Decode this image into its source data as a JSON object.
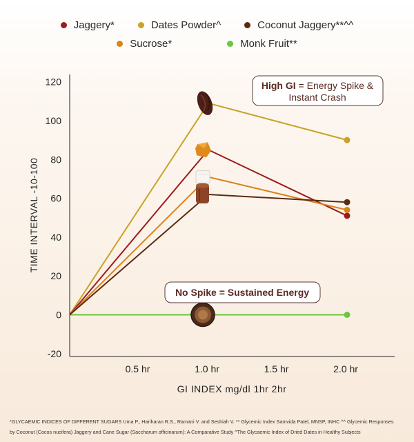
{
  "legend_rows": [
    [
      {
        "label": "Jaggery*",
        "color": "#9b1c1c"
      },
      {
        "label": "Dates Powder^",
        "color": "#c9a227"
      },
      {
        "label": "Coconut Jaggery**^^",
        "color": "#5a2a12"
      }
    ],
    [
      {
        "label": "Sucrose*",
        "color": "#d9831c"
      },
      {
        "label": "Monk Fruit**",
        "color": "#6cc63a"
      }
    ]
  ],
  "callouts": {
    "high_gi": {
      "bold": "High GI",
      "line1_rest": " = Energy Spike &",
      "line2": "Instant Crash"
    },
    "no_spike": {
      "bold": "No Spike = Sustained Energy"
    }
  },
  "chart_data": {
    "type": "line",
    "x": [
      "0",
      "0.5 hr",
      "1.0 hr",
      "1.5 hr",
      "2.0 hr"
    ],
    "x_values": [
      0,
      0.5,
      1.0,
      1.5,
      2.0
    ],
    "xticks_shown": [
      "0.5 hr",
      "1.0 hr",
      "1.5 hr",
      "2.0 hr"
    ],
    "xlabel": "GI INDEX mg/dl 1hr 2hr",
    "ylabel": "TIME INTERVAL -10-100",
    "ylim": [
      -20,
      120
    ],
    "yticks": [
      -20,
      0,
      20,
      40,
      60,
      80,
      100,
      120
    ],
    "grid": false,
    "legend_position": "top-center",
    "series": [
      {
        "name": "Dates Powder^",
        "color": "#c9a227",
        "x": [
          0,
          1.0,
          2.0
        ],
        "values": [
          0,
          109,
          90
        ],
        "icon": "dates"
      },
      {
        "name": "Jaggery*",
        "color": "#9b1c1c",
        "x": [
          0,
          1.0,
          2.0
        ],
        "values": [
          0,
          85,
          51
        ],
        "icon": "jaggery"
      },
      {
        "name": "Sucrose*",
        "color": "#d9831c",
        "x": [
          0,
          1.0,
          2.0
        ],
        "values": [
          0,
          71,
          54
        ],
        "icon": "sugar-cube"
      },
      {
        "name": "Coconut Jaggery**^^",
        "color": "#5a2a12",
        "x": [
          0,
          1.0,
          2.0
        ],
        "values": [
          0,
          62,
          58
        ],
        "icon": "coconut-jaggery"
      },
      {
        "name": "Monk Fruit**",
        "color": "#6cc63a",
        "x": [
          0,
          1.0,
          2.0
        ],
        "values": [
          0,
          0,
          0
        ],
        "icon": "monk-fruit"
      }
    ]
  },
  "footnote": {
    "line1": "*GLYCAEMIC INDICES OF DIFFERENT SUGARS Uma P., Hariharan R.S., Ramani V. and Seshiah V.   ** Glycemic Index Samvida Patel, MNSP, INHC   ^^ Glycemic Responses",
    "line2": "by Coconut (Cocos nucifera) Jaggery and Cane Sugar (Saccharum officinarum): A Comparative Study   ^The Glycaemic Index of Dried Dates in Healthy Subjects"
  }
}
